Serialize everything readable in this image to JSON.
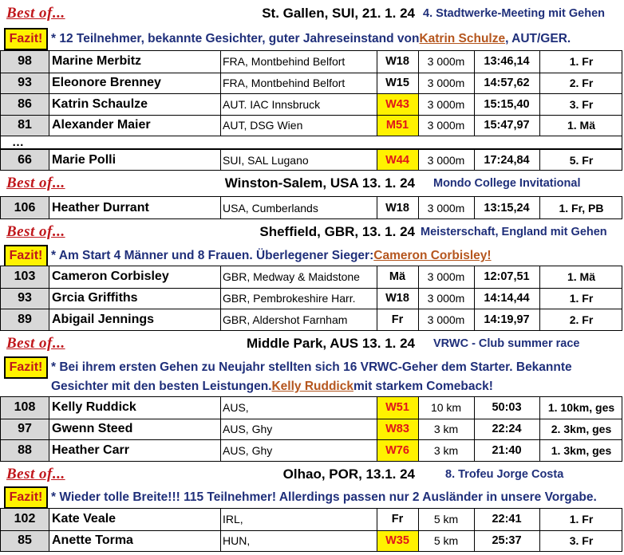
{
  "best_label": "Best of...",
  "fazit_label": "Fazit!",
  "stgallen": {
    "place": "St. Gallen, SUI,  21. 1. 24",
    "event": "4. Stadtwerke-Meeting mit Gehen",
    "note_pre": "* 12 Teilnehmer, bekannte Gesichter, guter Jahreseinstand von ",
    "note_hl": "Katrin Schulze",
    "note_post": ", AUT/GER.",
    "rows": [
      {
        "pts": "98",
        "name": "Marine Merbitz",
        "club": "FRA, Montbehind Belfort",
        "cls": "W18",
        "dist": "3 000m",
        "time": "13:46,14",
        "rank": "1. Fr"
      },
      {
        "pts": "93",
        "name": "Eleonore Brenney",
        "club": "FRA, Montbehind Belfort",
        "cls": "W15",
        "dist": "3 000m",
        "time": "14:57,62",
        "rank": "2. Fr"
      },
      {
        "pts": "86",
        "name": "Katrin Schaulze",
        "club": "AUT. IAC Innsbruck",
        "cls": "W43",
        "dist": "3 000m",
        "time": "15:15,40",
        "rank": "3. Fr"
      },
      {
        "pts": "81",
        "name": "Alexander Maier",
        "club": "AUT, DSG Wien",
        "cls": "M51",
        "dist": "3 000m",
        "time": "15:47,97",
        "rank": "1. Mä"
      }
    ],
    "ellipsis": "…",
    "row_last": {
      "pts": "66",
      "name": "Marie Polli",
      "club": "SUI, SAL Lugano",
      "cls": "W44",
      "dist": "3 000m",
      "time": "17:24,84",
      "rank": "5. Fr"
    }
  },
  "winston": {
    "place": "Winston-Salem, USA  13. 1. 24",
    "event": "Mondo College Invitational",
    "rows": [
      {
        "pts": "106",
        "name": "Heather Durrant",
        "club": "USA, Cumberlands",
        "cls": "W18",
        "dist": "3 000m",
        "time": "13:15,24",
        "rank": "1. Fr, PB"
      }
    ]
  },
  "sheffield": {
    "place": "Sheffield, GBR,  13. 1. 24",
    "event": "Meisterschaft, England mit Gehen",
    "note_pre": "* Am Start 4 Männer und 8 Frauen. Überlegener Sieger: ",
    "note_hl": "Cameron Corbisley!",
    "rows": [
      {
        "pts": "103",
        "name": "Cameron Corbisley",
        "club": "GBR, Medway & Maidstone",
        "cls": "Mä",
        "dist": "3 000m",
        "time": "12:07,51",
        "rank": "1. Mä"
      },
      {
        "pts": "93",
        "name": "Grcia Griffiths",
        "club": "GBR, Pembrokeshire Harr.",
        "cls": "W18",
        "dist": "3 000m",
        "time": "14:14,44",
        "rank": "1. Fr"
      },
      {
        "pts": "89",
        "name": "Abigail Jennings",
        "club": "GBR, Aldershot Farnham",
        "cls": "Fr",
        "dist": "3 000m",
        "time": "14:19,97",
        "rank": "2. Fr"
      }
    ]
  },
  "middlepark": {
    "place": "Middle Park, AUS  13. 1. 24",
    "event": "VRWC - Club summer race",
    "note_line1": "* Bei ihrem ersten Gehen zu Neujahr stellten sich 16 VRWC-Geher dem Starter. Bekannte",
    "note_line2_pre": "Gesichter mit den besten Leistungen. ",
    "note_line2_hl": "Kelly Ruddick",
    "note_line2_post": " mit starkem Comeback!",
    "rows": [
      {
        "pts": "108",
        "name": "Kelly Ruddick",
        "club": "AUS,",
        "cls": "W51",
        "dist": "10 km",
        "time": "50:03",
        "rank": "1. 10km, ges"
      },
      {
        "pts": "97",
        "name": "Gwenn Steed",
        "club": "AUS, Ghy",
        "cls": "W83",
        "dist": "3 km",
        "time": "22:24",
        "rank": "2. 3km, ges"
      },
      {
        "pts": "88",
        "name": "Heather Carr",
        "club": "AUS, Ghy",
        "cls": "W76",
        "dist": "3 km",
        "time": "21:40",
        "rank": "1. 3km, ges"
      }
    ]
  },
  "olhao": {
    "place": "Olhao, POR, 13.1. 24",
    "event": "8. Trofeu Jorge Costa",
    "note": "* Wieder tolle Breite!!! 115 Teilnehmer! Allerdings passen nur 2 Ausländer in unsere Vorgabe.",
    "rows": [
      {
        "pts": "102",
        "name": "Kate Veale",
        "club": "IRL,",
        "cls": "Fr",
        "dist": "5 km",
        "time": "22:41",
        "rank": "1. Fr"
      },
      {
        "pts": "85",
        "name": "Anette Torma",
        "club": "HUN,",
        "cls": "W35",
        "dist": "5 km",
        "time": "25:37",
        "rank": "3. Fr"
      }
    ]
  },
  "colors": {
    "accent_red": "#c0171c",
    "navy": "#1f2f7a",
    "highlight_yellow": "#fff200",
    "link_brown": "#b5561e",
    "points_gray": "#d8d8d8"
  }
}
